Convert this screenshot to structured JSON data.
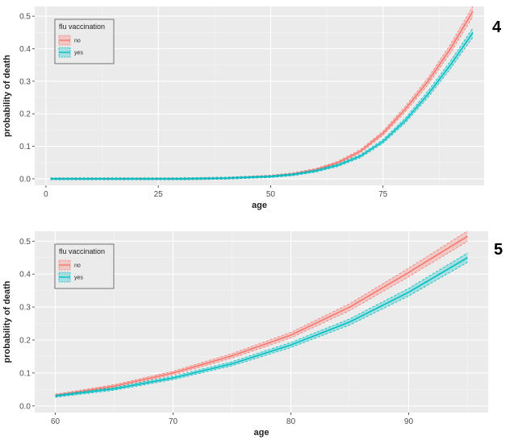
{
  "colors": {
    "no": "#f8766d",
    "yes": "#00bfc4",
    "panel_bg": "#ebebeb",
    "grid": "#ffffff"
  },
  "chart_data": [
    {
      "type": "line",
      "panel_label": "4",
      "xlabel": "age",
      "ylabel": "probability of death",
      "xlim": [
        -2.5,
        97.5
      ],
      "ylim": [
        -0.02,
        0.53
      ],
      "xticks": [
        0,
        25,
        50,
        75
      ],
      "yticks": [
        0.0,
        0.1,
        0.2,
        0.3,
        0.4,
        0.5
      ],
      "xtick_labels": [
        "0",
        "25",
        "50",
        "75"
      ],
      "ytick_labels": [
        "0.0",
        "0.1",
        "0.2",
        "0.3",
        "0.4",
        "0.5"
      ],
      "grid": true,
      "legend": {
        "title": "flu vaccination",
        "position": "top-left",
        "entries": [
          "no",
          "yes"
        ]
      },
      "series": [
        {
          "name": "no",
          "color": "#f8766d",
          "x": [
            1,
            10,
            20,
            30,
            40,
            50,
            55,
            60,
            65,
            70,
            75,
            80,
            85,
            90,
            95
          ],
          "y": [
            0.0,
            0.0,
            0.0,
            0.0,
            0.002,
            0.008,
            0.015,
            0.028,
            0.05,
            0.085,
            0.14,
            0.215,
            0.3,
            0.4,
            0.515
          ]
        },
        {
          "name": "yes",
          "color": "#00bfc4",
          "x": [
            1,
            10,
            20,
            30,
            40,
            50,
            55,
            60,
            65,
            70,
            75,
            80,
            85,
            90,
            95
          ],
          "y": [
            0.0,
            0.0,
            0.0,
            0.0,
            0.002,
            0.007,
            0.013,
            0.024,
            0.042,
            0.07,
            0.115,
            0.18,
            0.26,
            0.35,
            0.45
          ]
        }
      ]
    },
    {
      "type": "line",
      "panel_label": "5",
      "xlabel": "age",
      "ylabel": "probability of death",
      "xlim": [
        58.25,
        96.75
      ],
      "ylim": [
        -0.02,
        0.53
      ],
      "xticks": [
        60,
        70,
        80,
        90
      ],
      "yticks": [
        0.0,
        0.1,
        0.2,
        0.3,
        0.4,
        0.5
      ],
      "xtick_labels": [
        "60",
        "70",
        "80",
        "90"
      ],
      "ytick_labels": [
        "0.0",
        "0.1",
        "0.2",
        "0.3",
        "0.4",
        "0.5"
      ],
      "grid": true,
      "legend": {
        "title": "flu vaccination",
        "position": "top-left",
        "entries": [
          "no",
          "yes"
        ]
      },
      "series": [
        {
          "name": "no",
          "color": "#f8766d",
          "x": [
            60,
            65,
            70,
            75,
            80,
            85,
            90,
            95
          ],
          "y": [
            0.032,
            0.06,
            0.1,
            0.152,
            0.215,
            0.3,
            0.405,
            0.515
          ]
        },
        {
          "name": "yes",
          "color": "#00bfc4",
          "x": [
            60,
            65,
            70,
            75,
            80,
            85,
            90,
            95
          ],
          "y": [
            0.03,
            0.052,
            0.085,
            0.128,
            0.185,
            0.255,
            0.345,
            0.45
          ]
        }
      ]
    }
  ]
}
